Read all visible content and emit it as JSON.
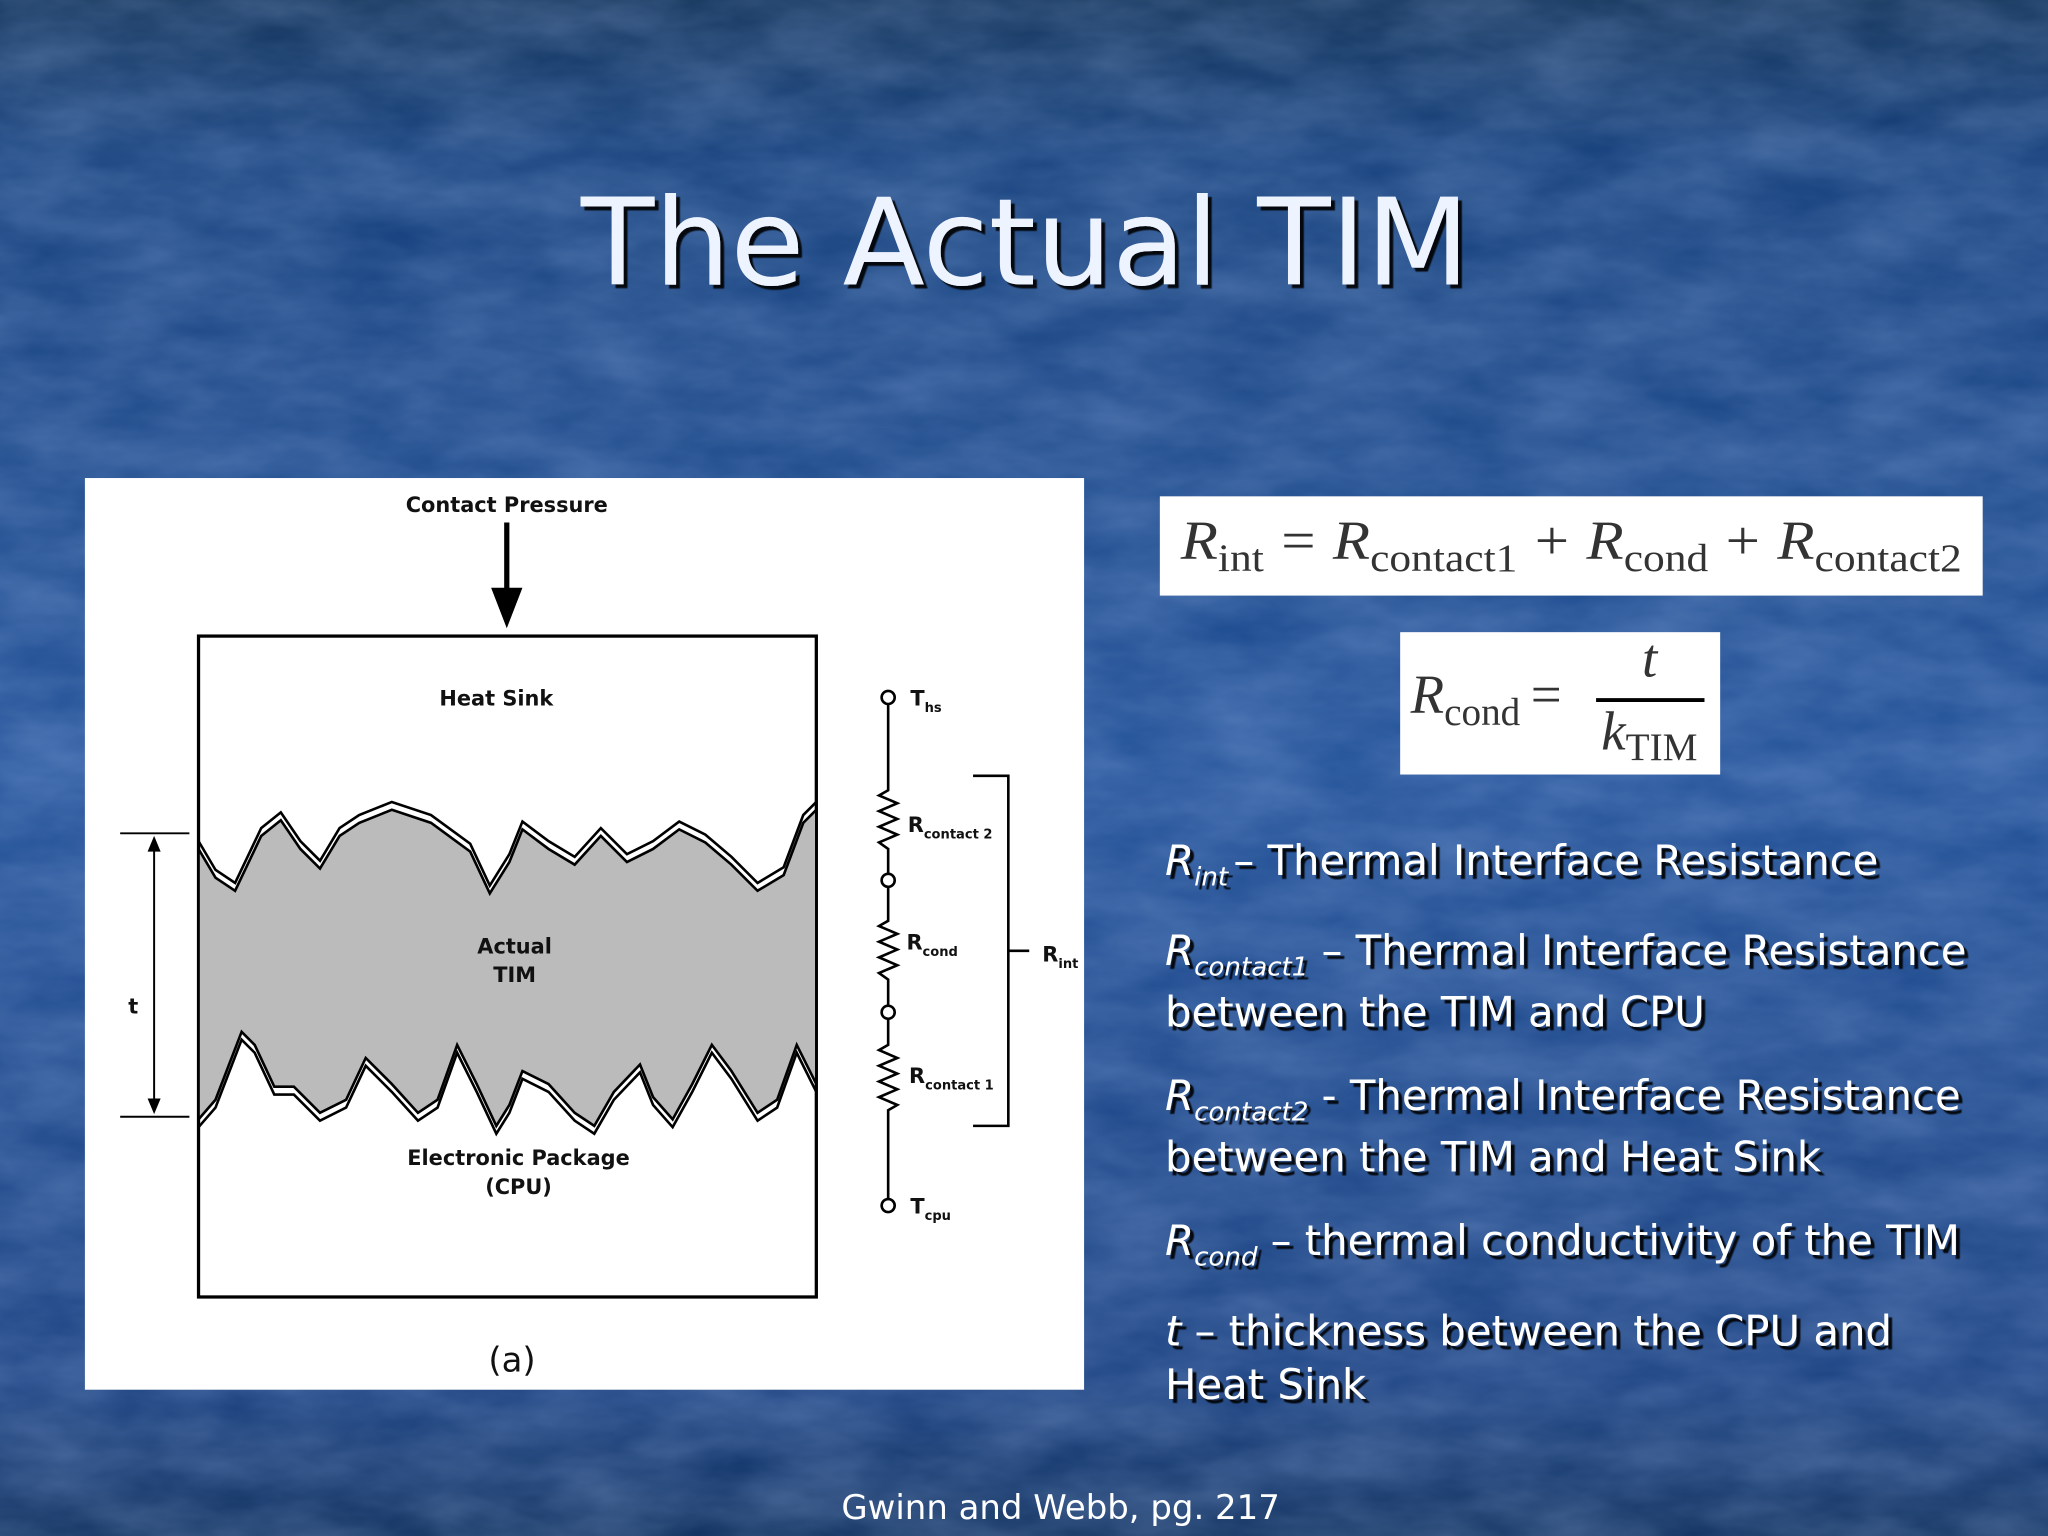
{
  "header": {
    "title": "The Actual TIM"
  },
  "figure": {
    "pressure": "Contact Pressure",
    "heat_sink": "Heat Sink",
    "tim": [
      "Actual",
      "TIM"
    ],
    "thickness": "t",
    "package": [
      "Electronic Package",
      "(CPU)"
    ],
    "caption": "(a)",
    "nodes": [
      {
        "main": "T",
        "sub": "hs"
      },
      {
        "main": "R",
        "sub": "contact 2"
      },
      {
        "main": "R",
        "sub": "cond"
      },
      {
        "main": "R",
        "sub": "contact 1"
      },
      {
        "main": "T",
        "sub": "cpu"
      }
    ],
    "total": {
      "main": "R",
      "sub": "int"
    }
  },
  "equations": [
    {
      "terms": [
        {
          "symbol": "R",
          "sub": "int"
        },
        {
          "symbol": "R",
          "sub": "contact1"
        },
        {
          "symbol": "R",
          "sub": "cond"
        },
        {
          "symbol": "R",
          "sub": "contact2"
        }
      ],
      "operators": [
        "=",
        "+",
        "+"
      ]
    },
    {
      "lhs": {
        "symbol": "R",
        "sub": "cond"
      },
      "operator": "=",
      "numerator": "t",
      "denominator": {
        "symbol": "k",
        "sub": "TIM"
      }
    }
  ],
  "definitions": [
    {
      "symbol": "R",
      "sub": "int",
      "lines": [
        "– Thermal Interface Resistance"
      ]
    },
    {
      "symbol": "R",
      "sub": "contact1",
      "lines": [
        "– Thermal Interface Resistance",
        "between the TIM and CPU"
      ]
    },
    {
      "symbol": "R",
      "sub": "contact2",
      "lines": [
        "- Thermal Interface Resistance",
        "between the TIM and Heat Sink"
      ]
    },
    {
      "symbol": "R",
      "sub": "cond",
      "lines": [
        "– thermal conductivity of the TIM"
      ]
    },
    {
      "symbol": "t",
      "lines": [
        "– thickness between the CPU and",
        "Heat Sink"
      ]
    }
  ],
  "footer": {
    "citation": "Gwinn and Webb, pg. 217"
  }
}
